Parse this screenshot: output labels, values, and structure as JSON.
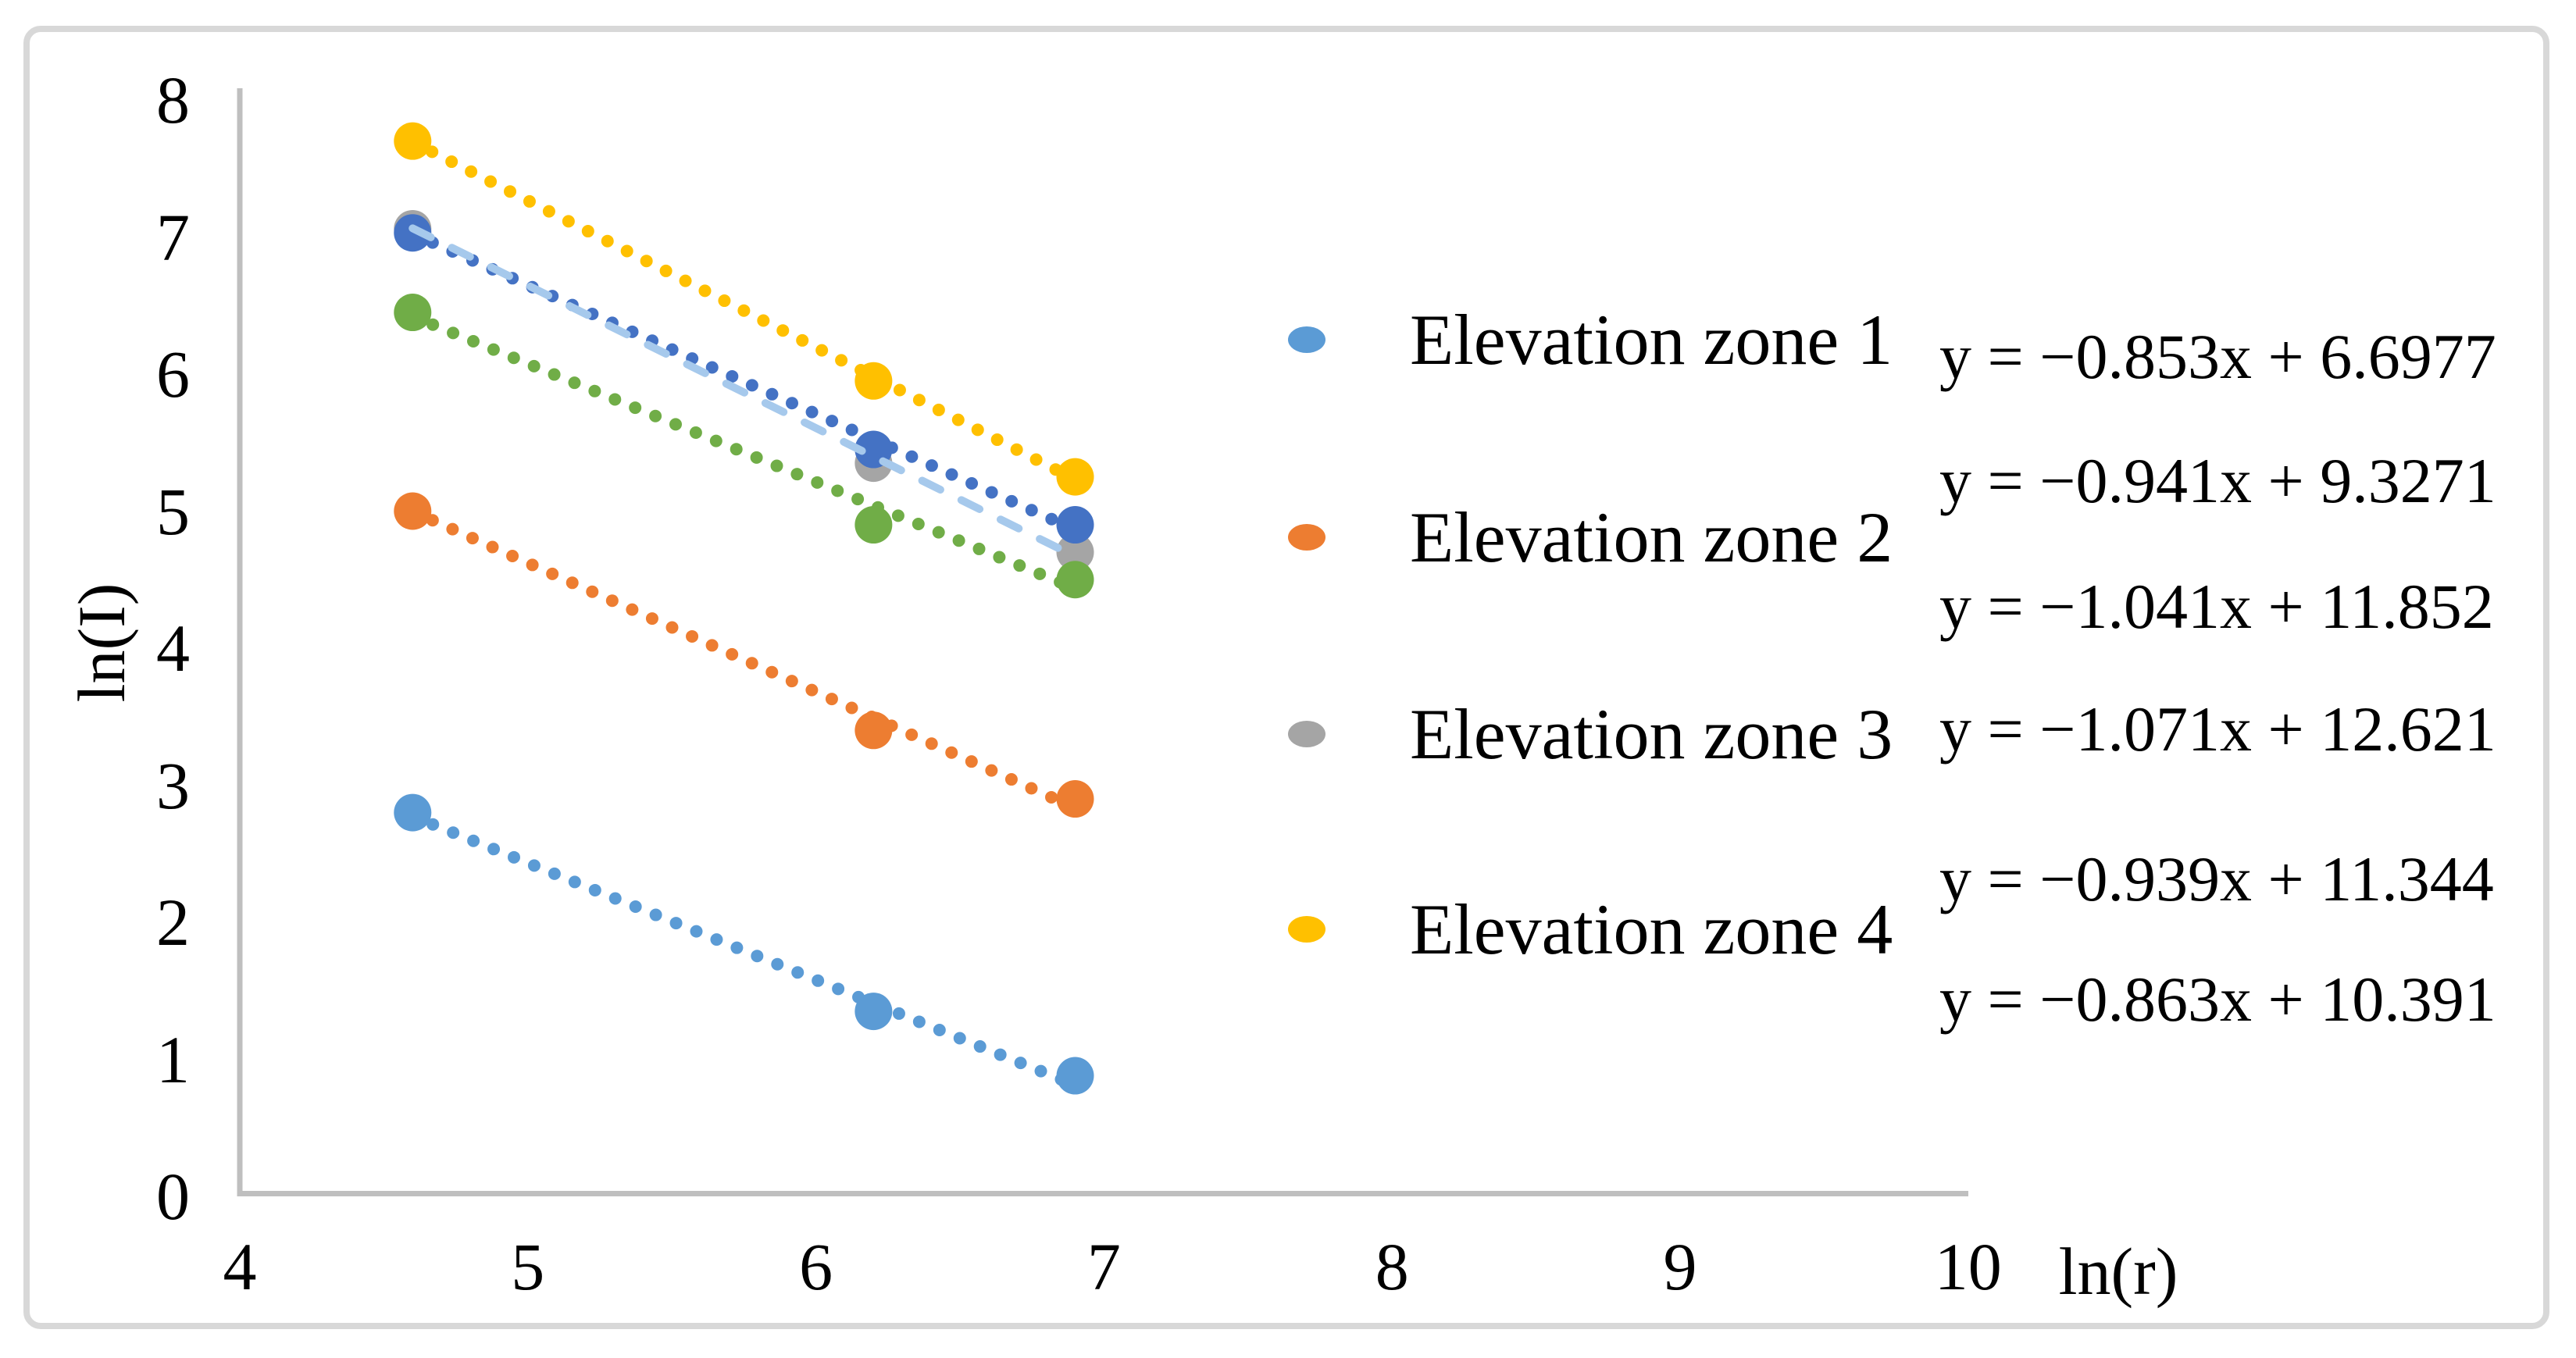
{
  "figure": {
    "background": "#FFFFFF",
    "border_color": "#D8D8D8",
    "axis_line_color": "#BFBFBF"
  },
  "chart_data": {
    "type": "scatter",
    "title": "",
    "xlabel": "ln(r)",
    "ylabel": "ln(I)",
    "xlim": [
      4,
      10
    ],
    "ylim": [
      0,
      8
    ],
    "x_ticks": [
      4,
      5,
      6,
      7,
      8,
      9,
      10
    ],
    "y_ticks": [
      0,
      1,
      2,
      3,
      4,
      5,
      6,
      7,
      8
    ],
    "grid": false,
    "legend_position": "right",
    "series": [
      {
        "name": "Elevation zone 1",
        "color": "#5B9BD5",
        "x": [
          4.6,
          6.2,
          6.9
        ],
        "y": [
          2.8,
          1.35,
          0.88
        ],
        "trendline": {
          "slope": -0.853,
          "intercept": 6.6977,
          "style": "dotted",
          "color": "#5B9BD5",
          "equation": "y = −0.853x + 6.6977"
        }
      },
      {
        "name": "Elevation zone 2",
        "color": "#ED7D31",
        "x": [
          4.6,
          6.2,
          6.9
        ],
        "y": [
          5.0,
          3.4,
          2.9
        ],
        "trendline": {
          "slope": -0.941,
          "intercept": 9.3271,
          "style": "dotted",
          "color": "#ED7D31",
          "equation": "y = −0.941x + 9.3271"
        }
      },
      {
        "name": "Elevation zone 3",
        "color": "#A5A5A5",
        "x": [
          4.6,
          6.2,
          6.9
        ],
        "y": [
          7.06,
          5.35,
          4.7
        ],
        "trendline": {
          "slope": -1.041,
          "intercept": 11.852,
          "style": "dashed",
          "color": "#A6C9EC",
          "equation": "y = −1.041x + 11.852"
        }
      },
      {
        "name": "Elevation zone 4",
        "color": "#FFC000",
        "x": [
          4.6,
          6.2,
          6.9
        ],
        "y": [
          7.7,
          5.95,
          5.25
        ],
        "trendline": {
          "slope": -1.071,
          "intercept": 12.621,
          "style": "dotted",
          "color": "#FFC000",
          "equation": "y = −1.071x + 12.621"
        }
      },
      {
        "name": "",
        "color": "#4472C4",
        "x": [
          4.6,
          6.2,
          6.9
        ],
        "y": [
          7.03,
          5.45,
          4.9
        ],
        "trendline": {
          "slope": -0.939,
          "intercept": 11.344,
          "style": "dotted",
          "color": "#4472C4",
          "equation": "y = −0.939x + 11.344"
        }
      },
      {
        "name": "",
        "color": "#70AD47",
        "x": [
          4.6,
          6.2,
          6.9
        ],
        "y": [
          6.45,
          4.9,
          4.5
        ],
        "trendline": {
          "slope": -0.863,
          "intercept": 10.391,
          "style": "dotted",
          "color": "#70AD47",
          "equation": "y = −0.863x + 10.391"
        }
      }
    ]
  },
  "legend": {
    "items": [
      {
        "label": "Elevation zone 1",
        "color": "#5B9BD5"
      },
      {
        "label": "Elevation zone 2",
        "color": "#ED7D31"
      },
      {
        "label": "Elevation zone 3",
        "color": "#A5A5A5"
      },
      {
        "label": "Elevation zone 4",
        "color": "#FFC000"
      }
    ]
  },
  "equations": [
    "y = −0.853x + 6.6977",
    "y = −0.941x + 9.3271",
    "y = −1.041x + 11.852",
    "y = −1.071x + 12.621",
    "y = −0.939x + 11.344",
    "y = −0.863x + 10.391"
  ]
}
